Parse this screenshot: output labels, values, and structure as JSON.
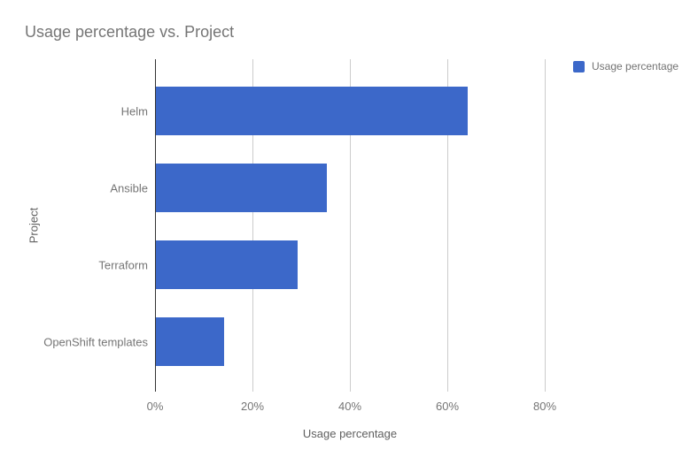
{
  "chart": {
    "title": "Usage percentage vs. Project",
    "legend": {
      "label": "Usage percentage"
    },
    "x_axis": {
      "title": "Usage percentage"
    },
    "y_axis": {
      "title": "Project"
    },
    "colors": {
      "bar": "#3c68c9",
      "gridline": "#cccccc",
      "axis_line": "#333333",
      "text_gray": "#757575"
    }
  },
  "chart_data": {
    "type": "bar",
    "orientation": "horizontal",
    "title": "Usage percentage vs. Project",
    "categories": [
      "Helm",
      "Ansible",
      "Terraform",
      "OpenShift templates"
    ],
    "values": [
      64,
      35,
      29,
      14
    ],
    "xlabel": "Usage percentage",
    "ylabel": "Project",
    "xlim": [
      0,
      80
    ],
    "x_tick_labels": [
      "0%",
      "20%",
      "40%",
      "60%",
      "80%"
    ],
    "grid": true,
    "legend_entries": [
      "Usage percentage"
    ],
    "legend_position": "top-right",
    "bar_color": "#3c68c9"
  }
}
